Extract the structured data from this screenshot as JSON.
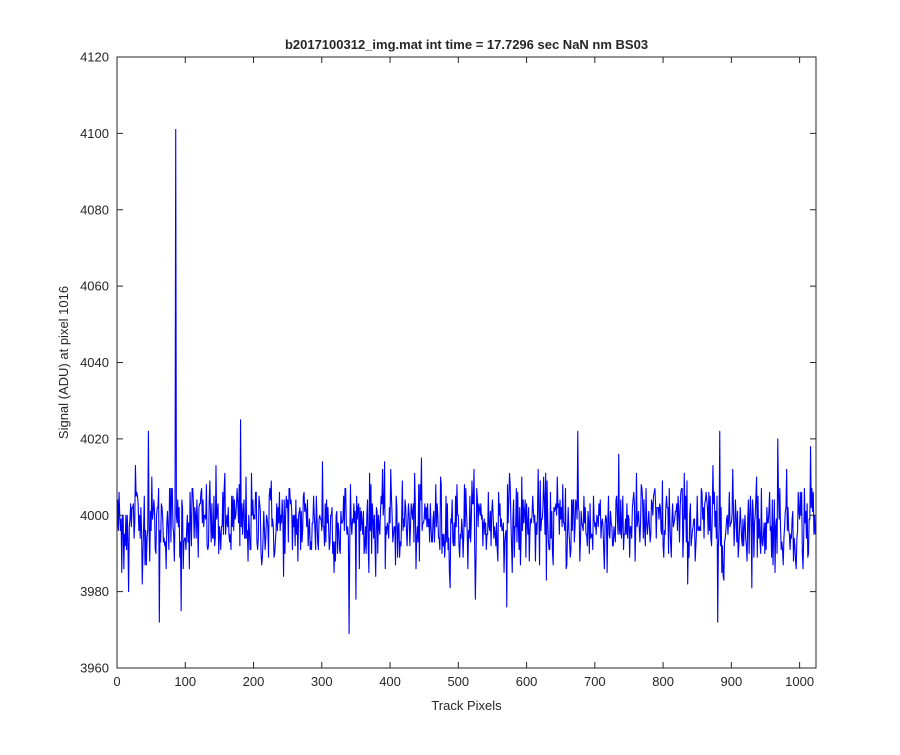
{
  "chart_data": {
    "type": "line",
    "title": "b2017100312_img.mat int time = 17.7296 sec  NaN nm BS03",
    "xlabel": "Track Pixels",
    "ylabel": "Signal (ADU) at pixel 1016",
    "xlim": [
      0,
      1024
    ],
    "ylim": [
      3960,
      4120
    ],
    "xticks": [
      0,
      100,
      200,
      300,
      400,
      500,
      600,
      700,
      800,
      900,
      1000
    ],
    "yticks": [
      3960,
      3980,
      4000,
      4020,
      4040,
      4060,
      4080,
      4100,
      4120
    ],
    "grid": false,
    "legend": "none",
    "series": [
      {
        "color": "#0000ff",
        "mean": 3998,
        "noise_std": 6,
        "n_points": 1024,
        "notable_points": [
          {
            "x": 7,
            "y": 3985
          },
          {
            "x": 17,
            "y": 3980
          },
          {
            "x": 27,
            "y": 4013
          },
          {
            "x": 46,
            "y": 4022
          },
          {
            "x": 62,
            "y": 3972
          },
          {
            "x": 85,
            "y": 4000
          },
          {
            "x": 86,
            "y": 4101
          },
          {
            "x": 87,
            "y": 4000
          },
          {
            "x": 94,
            "y": 3975
          },
          {
            "x": 181,
            "y": 4025
          },
          {
            "x": 301,
            "y": 4014
          },
          {
            "x": 340,
            "y": 3969
          },
          {
            "x": 571,
            "y": 3976
          },
          {
            "x": 675,
            "y": 4022
          },
          {
            "x": 880,
            "y": 3972
          },
          {
            "x": 883,
            "y": 4022
          },
          {
            "x": 968,
            "y": 4020
          },
          {
            "x": 1016,
            "y": 4018
          }
        ]
      }
    ]
  }
}
